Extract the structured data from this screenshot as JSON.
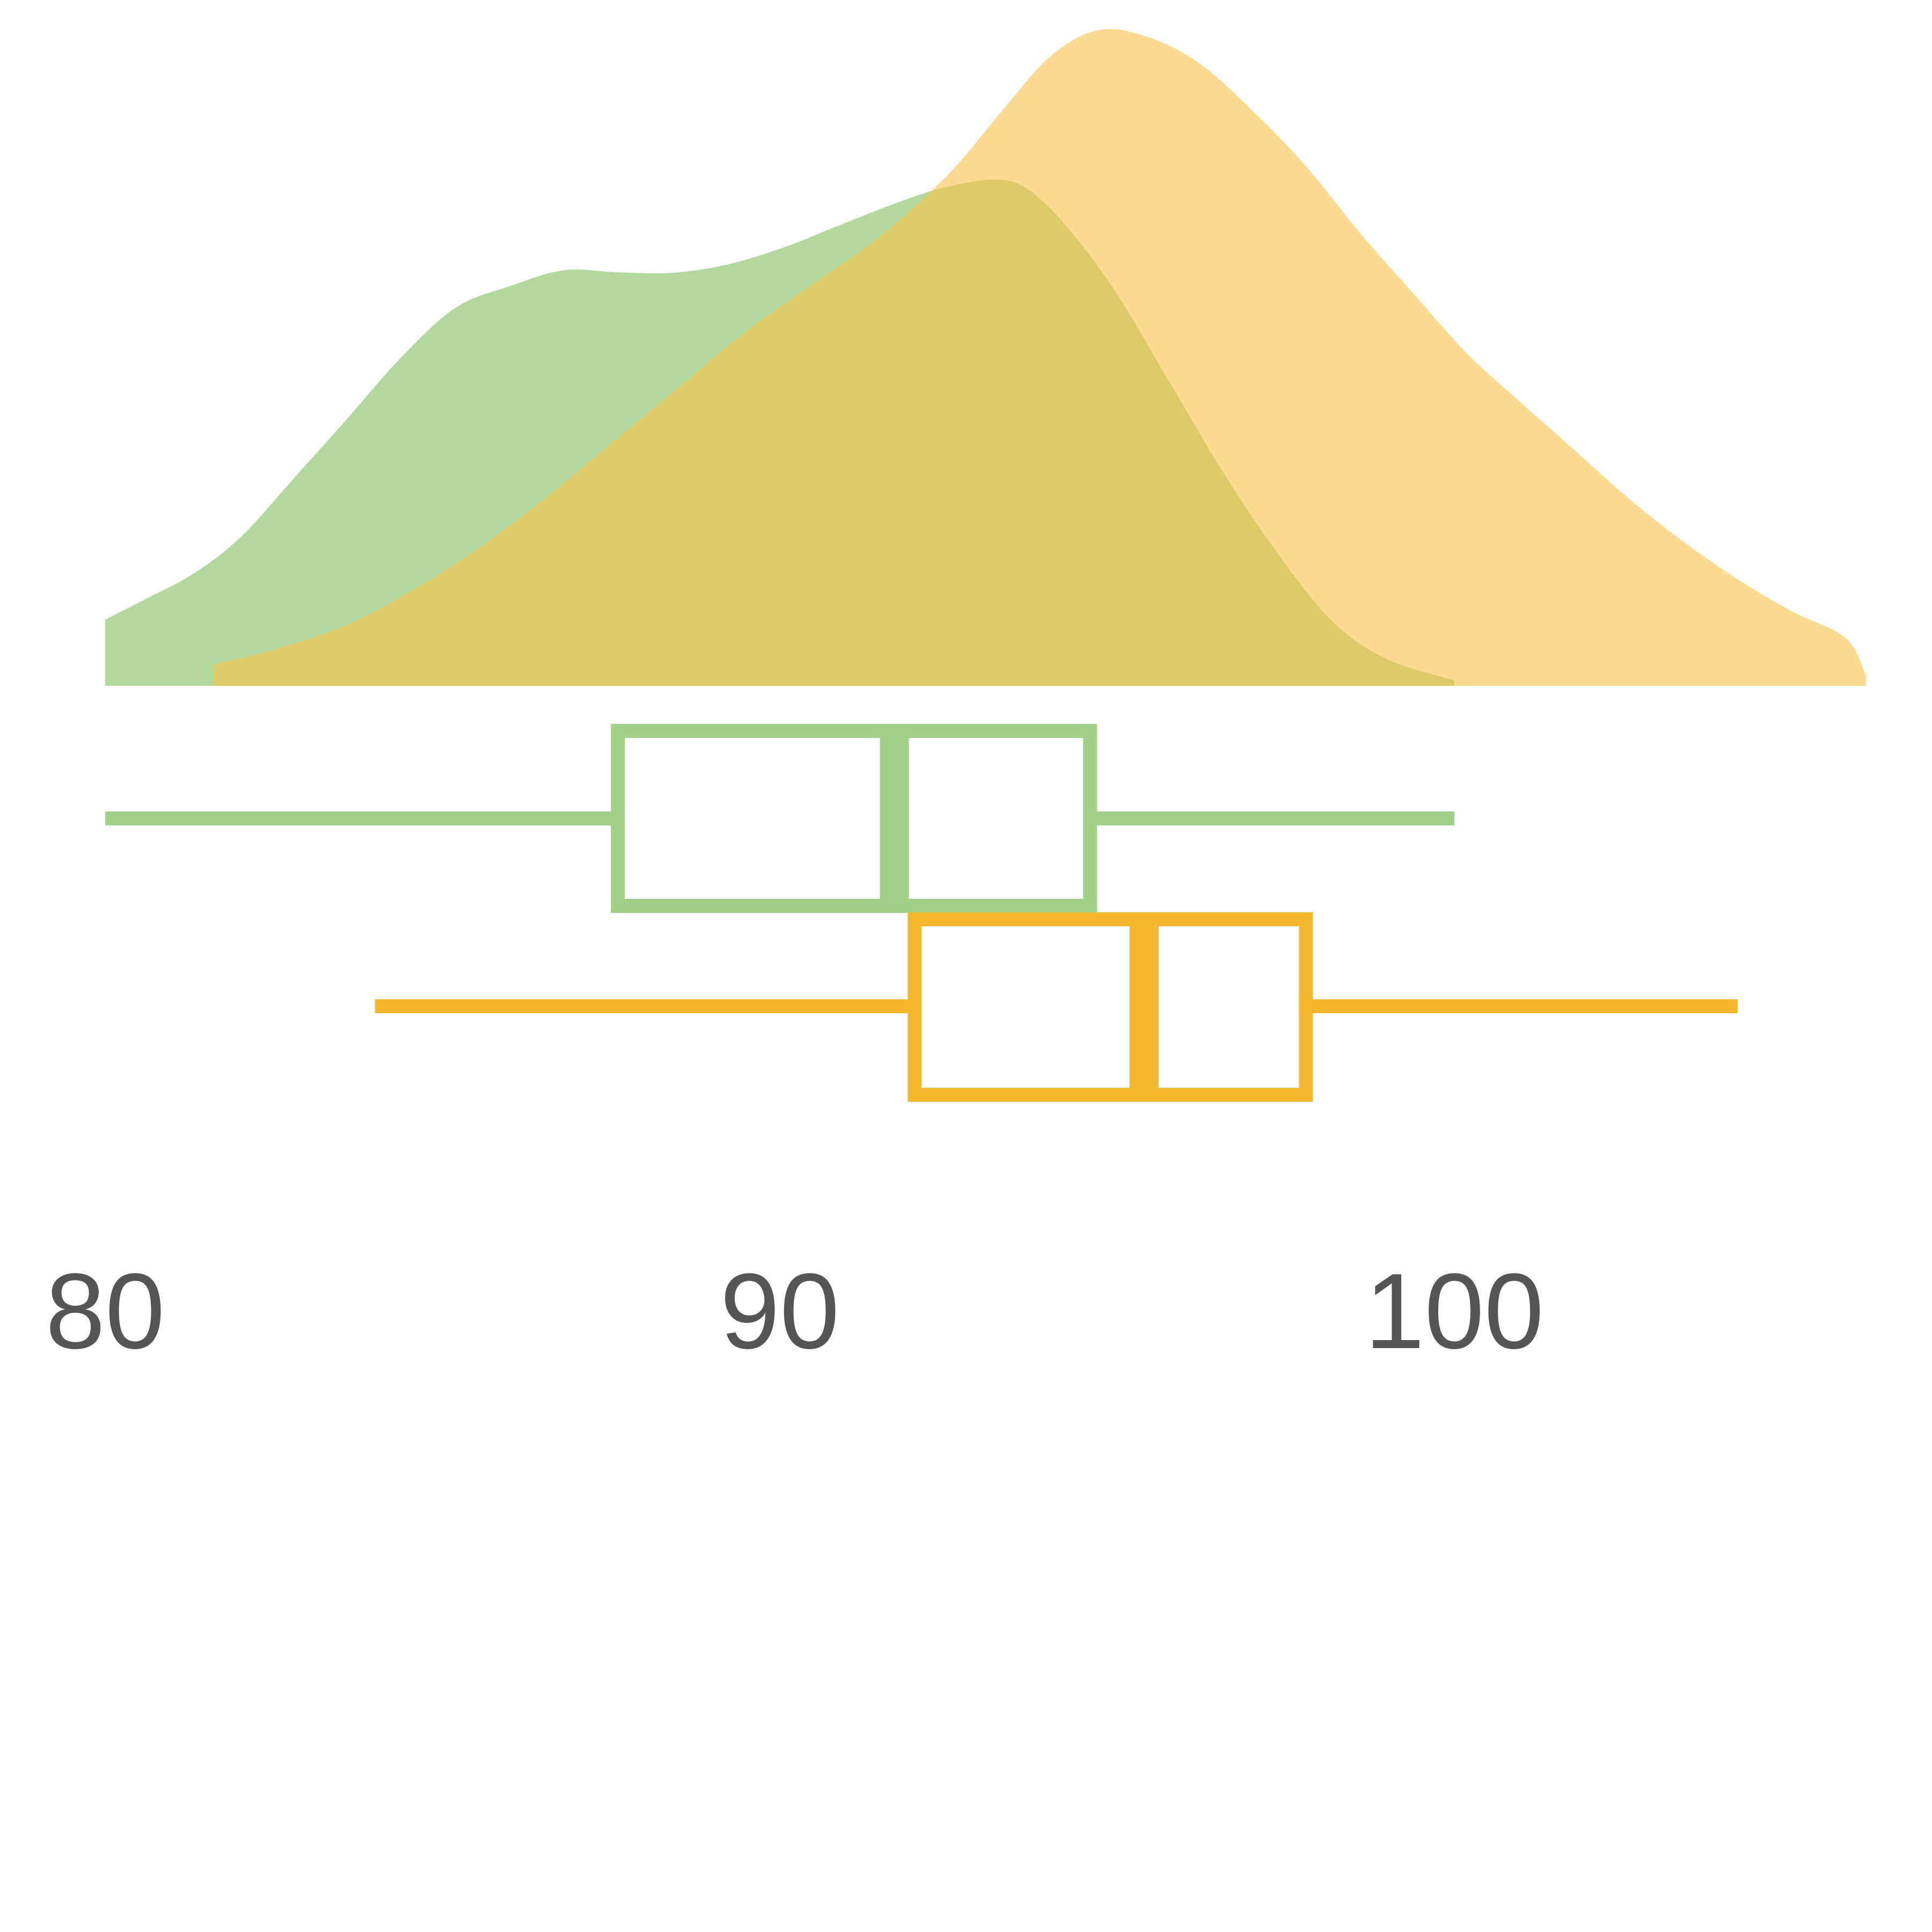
{
  "chart_data": {
    "type": "box-density",
    "xlim": [
      80,
      100
    ],
    "xticks": [
      "80",
      "90",
      "100"
    ],
    "grid": false,
    "legend": "none",
    "colors": {
      "green_fill": "#a8d38f",
      "green_stroke": "#a1d189",
      "orange_fill": "#f8c148",
      "orange_stroke": "#f6b730",
      "tick_text": "#555555"
    },
    "series": [
      {
        "color_key": "green",
        "density": {
          "x": [
            80,
            80.6,
            81.3,
            82,
            82.8,
            83.6,
            84.4,
            85.2,
            86,
            86.8,
            87.6,
            88.4,
            89.2,
            90,
            90.8,
            91.6,
            92.4,
            93.2,
            93.7,
            94.3,
            95,
            95.8,
            96.6,
            97.4,
            98.2,
            99,
            100
          ],
          "y": [
            0.124,
            0.163,
            0.21,
            0.278,
            0.39,
            0.503,
            0.618,
            0.71,
            0.75,
            0.78,
            0.776,
            0.775,
            0.79,
            0.82,
            0.86,
            0.9,
            0.934,
            0.95,
            0.93,
            0.855,
            0.735,
            0.565,
            0.395,
            0.245,
            0.12,
            0.05,
            0.01
          ]
        },
        "box": {
          "min": 80,
          "q1": 87.6,
          "median": 91.7,
          "q3": 94.6,
          "max": 100
        }
      },
      {
        "color_key": "orange",
        "density": {
          "x": [
            81.6,
            82.5,
            83.5,
            84.5,
            85.5,
            86.5,
            87.5,
            88.5,
            89.5,
            90.5,
            91.5,
            92.5,
            93.3,
            94,
            94.7,
            95.4,
            96.2,
            97,
            97.8,
            98.6,
            99.4,
            100.2,
            101,
            101.8,
            102.6,
            103.4,
            104.2,
            105,
            105.8,
            106.1
          ],
          "y": [
            0.04,
            0.068,
            0.11,
            0.175,
            0.255,
            0.35,
            0.455,
            0.56,
            0.665,
            0.755,
            0.845,
            0.96,
            1.08,
            1.18,
            1.23,
            1.22,
            1.17,
            1.08,
            0.975,
            0.85,
            0.735,
            0.622,
            0.53,
            0.44,
            0.35,
            0.27,
            0.2,
            0.14,
            0.09,
            0.02
          ]
        },
        "box": {
          "min": 84,
          "q1": 92,
          "median": 95.4,
          "q3": 97.8,
          "max": 104.2
        }
      }
    ]
  }
}
